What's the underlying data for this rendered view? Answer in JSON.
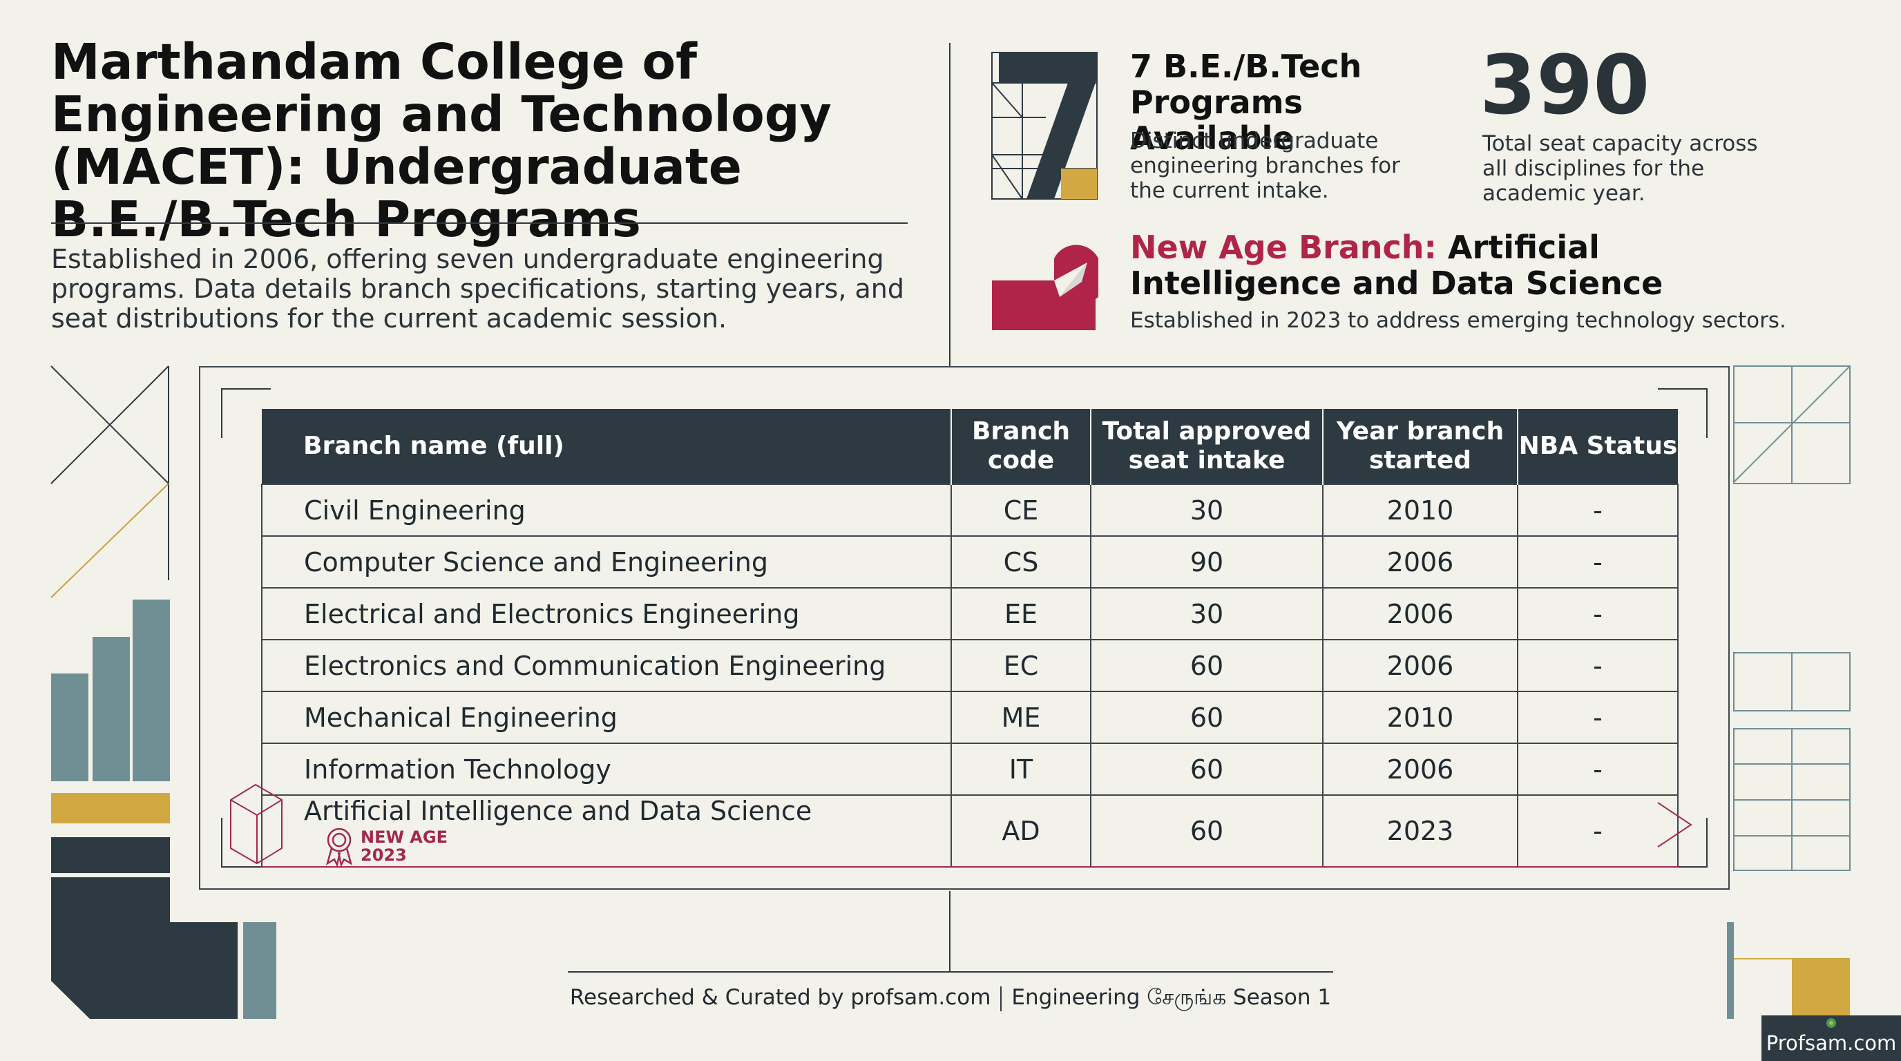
{
  "header": {
    "title": "Marthandam College of Engineering and Technology (MACET): Undergraduate B.E./B.Tech Programs",
    "intro": "Established in 2006, offering seven undergraduate engineering programs. Data details branch specifications, starting years, and seat distributions for the current academic session."
  },
  "stats": {
    "programs_title": "7 B.E./B.Tech Programs Available",
    "programs_desc": "Distinct undergraduate engineering branches for the current intake.",
    "seat_number": "390",
    "seat_desc": "Total seat capacity across all disciplines for the academic year.",
    "newage_label": "New Age Branch:",
    "newage_name": "Artificial Intelligence and Data Science",
    "newage_desc": "Established in 2023 to address emerging technology sectors."
  },
  "table": {
    "columns": [
      "Branch name (full)",
      "Branch code",
      "Total approved seat intake",
      "Year branch started",
      "NBA Status"
    ],
    "rows": [
      {
        "name": "Civil Engineering",
        "code": "CE",
        "seats": "30",
        "year": "2010",
        "nba": "-"
      },
      {
        "name": "Computer Science and Engineering",
        "code": "CS",
        "seats": "90",
        "year": "2006",
        "nba": "-"
      },
      {
        "name": "Electrical and Electronics Engineering",
        "code": "EE",
        "seats": "30",
        "year": "2006",
        "nba": "-"
      },
      {
        "name": "Electronics and Communication Engineering",
        "code": "EC",
        "seats": "60",
        "year": "2006",
        "nba": "-"
      },
      {
        "name": "Mechanical Engineering",
        "code": "ME",
        "seats": "60",
        "year": "2010",
        "nba": "-"
      },
      {
        "name": "Information Technology",
        "code": "IT",
        "seats": "60",
        "year": "2006",
        "nba": "-"
      },
      {
        "name": "Artificial Intelligence and Data Science",
        "code": "AD",
        "seats": "60",
        "year": "2023",
        "nba": "-"
      }
    ],
    "badge_line1": "NEW AGE",
    "badge_line2": "2023"
  },
  "footer": {
    "credit": "Researched & Curated by profsam.com",
    "series": "Engineering சேருங்க Season 1",
    "logo": "Profsam.com"
  },
  "colors": {
    "dark": "#2e3a41",
    "accent": "#b0244a",
    "gold": "#d2a843",
    "teal": "#6f8f94",
    "background": "#f2f1ea"
  }
}
